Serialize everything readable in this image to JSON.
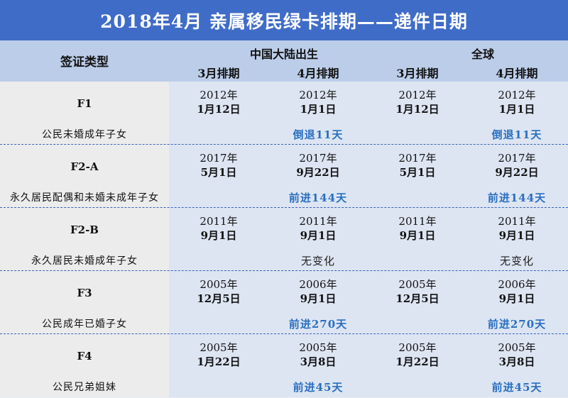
{
  "title": "2018年4月 亲属移民绿卡排期——递件日期",
  "header": {
    "visa_type": "签证类型",
    "group_china": "中国大陆出生",
    "group_global": "全球",
    "march": "3月排期",
    "april": "4月排期"
  },
  "rows": [
    {
      "code": "F1",
      "desc": "公民未婚成年子女",
      "china": {
        "mar": {
          "year": "2012年",
          "date": "1月12日"
        },
        "apr": {
          "year": "2012年",
          "date": "1月1日"
        },
        "change": "倒退11天"
      },
      "global": {
        "mar": {
          "year": "2012年",
          "date": "1月12日"
        },
        "apr": {
          "year": "2012年",
          "date": "1月1日"
        },
        "change": "倒退11天"
      }
    },
    {
      "code": "F2-A",
      "desc": "永久居民配偶和未婚未成年子女",
      "china": {
        "mar": {
          "year": "2017年",
          "date": "5月1日"
        },
        "apr": {
          "year": "2017年",
          "date": "9月22日"
        },
        "change": "前进144天"
      },
      "global": {
        "mar": {
          "year": "2017年",
          "date": "5月1日"
        },
        "apr": {
          "year": "2017年",
          "date": "9月22日"
        },
        "change": "前进144天"
      }
    },
    {
      "code": "F2-B",
      "desc": "永久居民未婚成年子女",
      "china": {
        "mar": {
          "year": "2011年",
          "date": "9月1日"
        },
        "apr": {
          "year": "2011年",
          "date": "9月1日"
        },
        "change": "无变化"
      },
      "global": {
        "mar": {
          "year": "2011年",
          "date": "9月1日"
        },
        "apr": {
          "year": "2011年",
          "date": "9月1日"
        },
        "change": "无变化"
      }
    },
    {
      "code": "F3",
      "desc": "公民成年已婚子女",
      "china": {
        "mar": {
          "year": "2005年",
          "date": "12月5日"
        },
        "apr": {
          "year": "2006年",
          "date": "9月1日"
        },
        "change": "前进270天"
      },
      "global": {
        "mar": {
          "year": "2005年",
          "date": "12月5日"
        },
        "apr": {
          "year": "2006年",
          "date": "9月1日"
        },
        "change": "前进270天"
      }
    },
    {
      "code": "F4",
      "desc": "公民兄弟姐妹",
      "china": {
        "mar": {
          "year": "2005年",
          "date": "1月22日"
        },
        "apr": {
          "year": "2005年",
          "date": "3月8日"
        },
        "change": "前进45天"
      },
      "global": {
        "mar": {
          "year": "2005年",
          "date": "1月22日"
        },
        "apr": {
          "year": "2005年",
          "date": "3月8日"
        },
        "change": "前进45天"
      }
    }
  ]
}
